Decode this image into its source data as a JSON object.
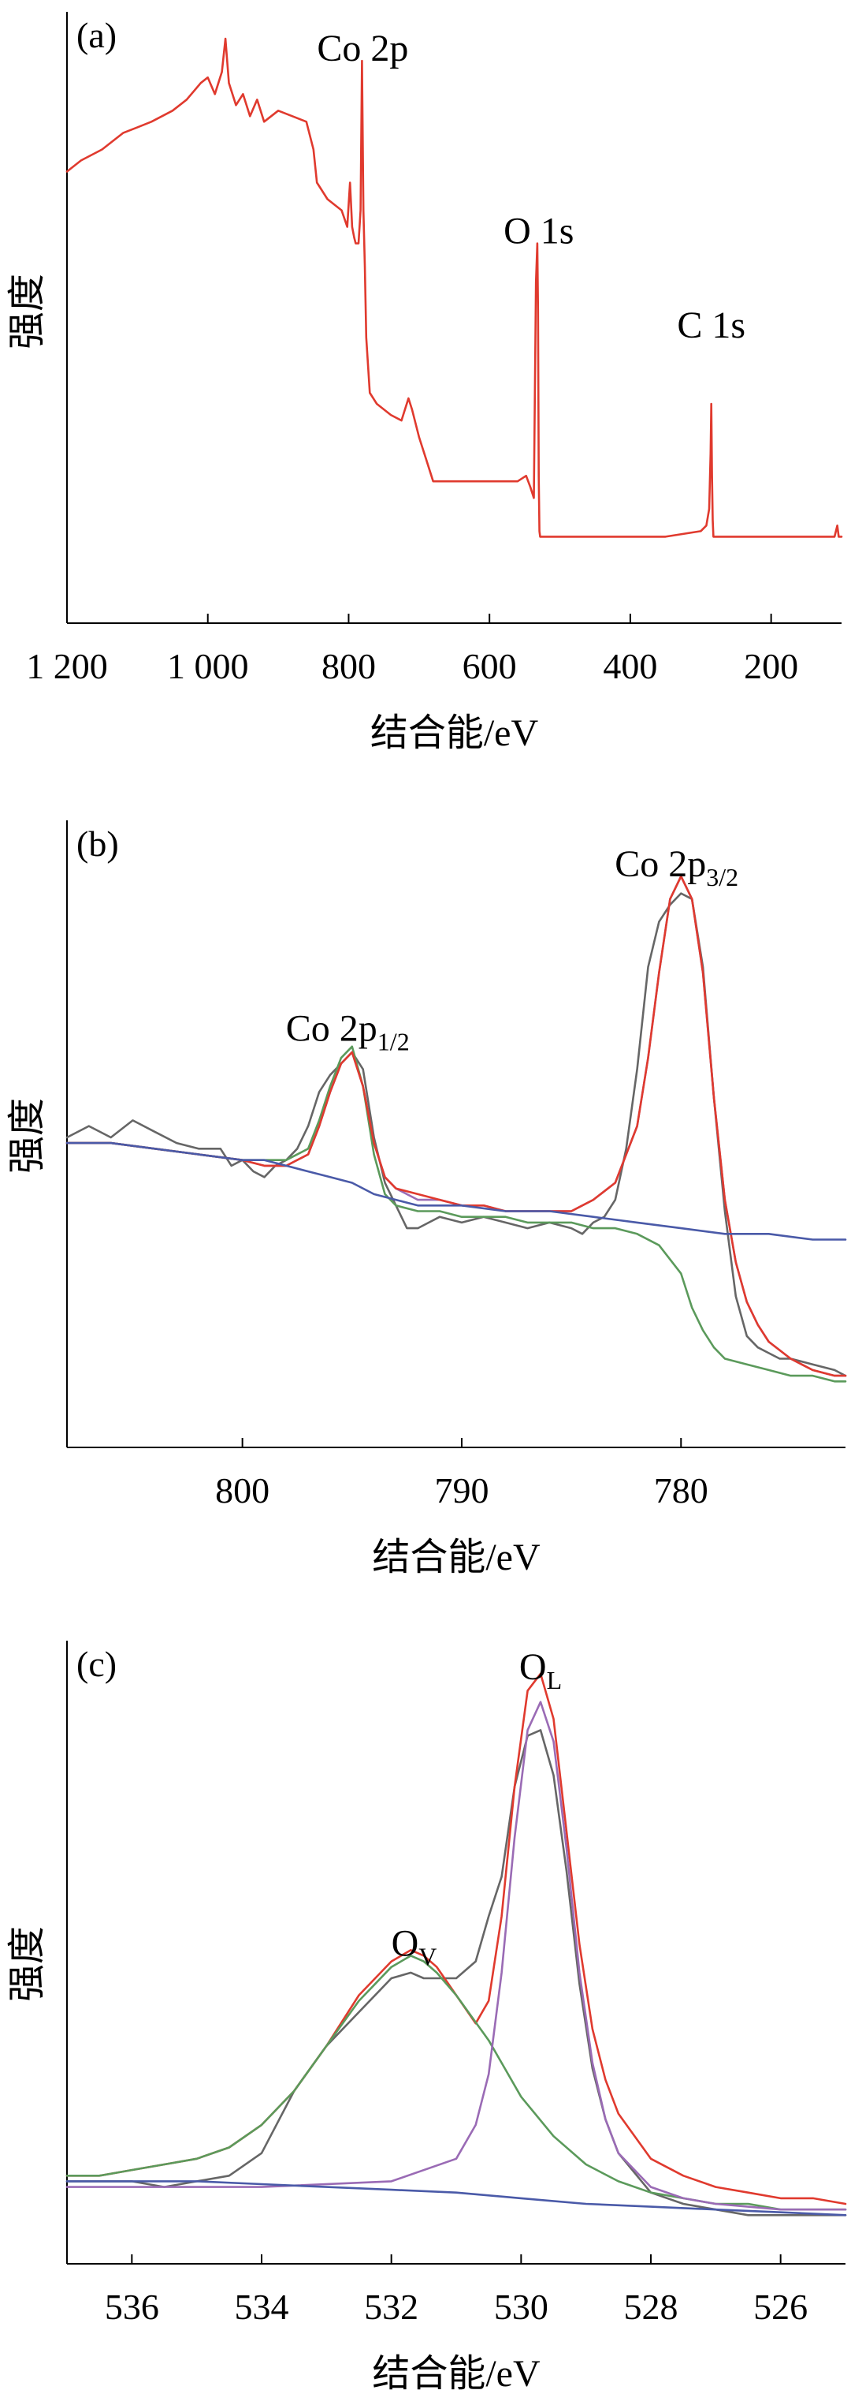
{
  "chart_data": [
    {
      "panel_label": "(a)",
      "type": "line",
      "xlabel": "结合能/eV",
      "ylabel": "强度",
      "xlim": [
        1200,
        100
      ],
      "ylim": [
        0,
        1
      ],
      "xticks": [
        {
          "value": 1200,
          "label": "1 200"
        },
        {
          "value": 1000,
          "label": "1 000"
        },
        {
          "value": 800,
          "label": "800"
        },
        {
          "value": 600,
          "label": "600"
        },
        {
          "value": 400,
          "label": "400"
        },
        {
          "value": 200,
          "label": "200"
        }
      ],
      "annotations": [
        {
          "text": "Co 2p",
          "x": 780,
          "y": 0.95
        },
        {
          "text": "O 1s",
          "x": 530,
          "y": 0.62
        },
        {
          "text": "C 1s",
          "x": 285,
          "y": 0.45
        }
      ],
      "series": [
        {
          "color": "#e03a2e",
          "x": [
            1200,
            1180,
            1150,
            1120,
            1100,
            1080,
            1050,
            1030,
            1010,
            1000,
            990,
            980,
            975,
            970,
            960,
            950,
            940,
            930,
            920,
            900,
            880,
            860,
            850,
            845,
            840,
            830,
            820,
            810,
            802,
            798,
            795,
            792,
            790,
            786,
            783,
            781,
            779,
            777,
            775,
            770,
            760,
            740,
            725,
            715,
            710,
            700,
            690,
            680,
            660,
            640,
            620,
            600,
            580,
            560,
            548,
            542,
            537,
            534,
            532,
            531,
            530,
            529,
            528,
            526,
            522,
            500,
            450,
            400,
            350,
            300,
            292,
            288,
            286,
            285,
            284,
            283,
            282,
            280,
            270,
            250,
            200,
            150,
            120,
            110,
            106,
            104,
            100
          ],
          "values": [
            0.75,
            0.77,
            0.79,
            0.82,
            0.83,
            0.84,
            0.86,
            0.88,
            0.91,
            0.92,
            0.89,
            0.93,
            0.99,
            0.91,
            0.87,
            0.89,
            0.85,
            0.88,
            0.84,
            0.86,
            0.85,
            0.84,
            0.79,
            0.73,
            0.72,
            0.7,
            0.69,
            0.68,
            0.65,
            0.73,
            0.65,
            0.63,
            0.62,
            0.62,
            0.68,
            0.95,
            0.68,
            0.58,
            0.45,
            0.35,
            0.33,
            0.31,
            0.3,
            0.34,
            0.32,
            0.27,
            0.23,
            0.19,
            0.19,
            0.19,
            0.19,
            0.19,
            0.19,
            0.19,
            0.2,
            0.18,
            0.16,
            0.55,
            0.62,
            0.5,
            0.2,
            0.1,
            0.09,
            0.09,
            0.09,
            0.09,
            0.09,
            0.09,
            0.09,
            0.1,
            0.11,
            0.14,
            0.24,
            0.33,
            0.2,
            0.12,
            0.09,
            0.09,
            0.09,
            0.09,
            0.09,
            0.09,
            0.09,
            0.09,
            0.11,
            0.09,
            0.09
          ]
        }
      ]
    },
    {
      "panel_label": "(b)",
      "type": "line",
      "xlabel": "结合能/eV",
      "ylabel": "强度",
      "xlim": [
        808,
        772.5
      ],
      "ylim": [
        0,
        1
      ],
      "xticks": [
        {
          "value": 800,
          "label": "800"
        },
        {
          "value": 790,
          "label": "790"
        },
        {
          "value": 780,
          "label": "780"
        }
      ],
      "annotations": [
        {
          "text": "Co 2p",
          "sub": "1/2",
          "x": 795.2,
          "y": 0.65
        },
        {
          "text": "Co 2p",
          "sub": "3/2",
          "x": 780.2,
          "y": 0.94
        }
      ],
      "series": [
        {
          "color": "#666666",
          "x": [
            808,
            807,
            806,
            805,
            804,
            803,
            802,
            801,
            800.5,
            800,
            799.5,
            799,
            798.5,
            798,
            797.5,
            797,
            796.5,
            796,
            795.5,
            795,
            794.5,
            794,
            793.5,
            793,
            792.5,
            792,
            791.5,
            791,
            790,
            789,
            788,
            787,
            786,
            785,
            784.5,
            784,
            783.5,
            783,
            782.5,
            782,
            781.5,
            781,
            780.5,
            780,
            779.5,
            779,
            778.5,
            778,
            777.5,
            777,
            776.5,
            776,
            775.5,
            775,
            774,
            773,
            772.5
          ],
          "values": [
            0.48,
            0.5,
            0.48,
            0.51,
            0.49,
            0.47,
            0.46,
            0.46,
            0.43,
            0.44,
            0.42,
            0.41,
            0.43,
            0.44,
            0.46,
            0.5,
            0.56,
            0.59,
            0.61,
            0.63,
            0.6,
            0.48,
            0.4,
            0.36,
            0.32,
            0.32,
            0.33,
            0.34,
            0.33,
            0.34,
            0.33,
            0.32,
            0.33,
            0.32,
            0.31,
            0.33,
            0.34,
            0.37,
            0.46,
            0.6,
            0.78,
            0.86,
            0.89,
            0.91,
            0.9,
            0.78,
            0.55,
            0.35,
            0.2,
            0.13,
            0.11,
            0.1,
            0.09,
            0.09,
            0.08,
            0.07,
            0.06
          ]
        },
        {
          "color": "#9a6bb5",
          "x": [
            808,
            806,
            804,
            802,
            800,
            799,
            798,
            797,
            796.5,
            796,
            795.5,
            795,
            794.5,
            794,
            793.5,
            793,
            792,
            791,
            790,
            789,
            788,
            787,
            786,
            785,
            784,
            783,
            782,
            781.5,
            781,
            780.5,
            780,
            779.5,
            779,
            778.5,
            778,
            777.5,
            777,
            776.5,
            776,
            775,
            774,
            773,
            772.5
          ],
          "values": [
            0.47,
            0.47,
            0.46,
            0.45,
            0.44,
            0.43,
            0.43,
            0.45,
            0.5,
            0.56,
            0.61,
            0.63,
            0.57,
            0.47,
            0.41,
            0.39,
            0.37,
            0.37,
            0.36,
            0.36,
            0.35,
            0.35,
            0.35,
            0.35,
            0.37,
            0.4,
            0.5,
            0.62,
            0.77,
            0.9,
            0.94,
            0.9,
            0.77,
            0.55,
            0.37,
            0.26,
            0.19,
            0.15,
            0.12,
            0.09,
            0.07,
            0.06,
            0.06
          ]
        },
        {
          "color": "#5b9a5b",
          "x": [
            808,
            806,
            804,
            802,
            800,
            798,
            797,
            796.5,
            796,
            795.5,
            795,
            794.5,
            794,
            793.5,
            793,
            792,
            791,
            790,
            789,
            788,
            787,
            786,
            785,
            784,
            783,
            782,
            781,
            780,
            779.5,
            779,
            778.5,
            778,
            777,
            776,
            775,
            774,
            773,
            772.5
          ],
          "values": [
            0.47,
            0.47,
            0.46,
            0.45,
            0.44,
            0.44,
            0.46,
            0.51,
            0.57,
            0.62,
            0.64,
            0.57,
            0.45,
            0.38,
            0.36,
            0.35,
            0.35,
            0.34,
            0.34,
            0.34,
            0.33,
            0.33,
            0.33,
            0.32,
            0.32,
            0.31,
            0.29,
            0.24,
            0.18,
            0.14,
            0.11,
            0.09,
            0.08,
            0.07,
            0.06,
            0.06,
            0.05,
            0.05
          ]
        },
        {
          "color": "#e03a2e",
          "x": [
            808,
            806,
            804,
            802,
            800,
            799,
            798,
            797,
            796.5,
            796,
            795.5,
            795,
            794.5,
            794,
            793.5,
            793,
            792,
            791,
            790,
            789,
            788,
            787,
            786,
            785,
            784,
            783,
            782,
            781.5,
            781,
            780.5,
            780,
            779.5,
            779,
            778.5,
            778,
            777.5,
            777,
            776.5,
            776,
            775,
            774,
            773,
            772.5
          ],
          "values": [
            0.47,
            0.47,
            0.46,
            0.45,
            0.44,
            0.43,
            0.43,
            0.45,
            0.5,
            0.56,
            0.61,
            0.63,
            0.57,
            0.47,
            0.41,
            0.39,
            0.38,
            0.37,
            0.36,
            0.36,
            0.35,
            0.35,
            0.35,
            0.35,
            0.37,
            0.4,
            0.5,
            0.62,
            0.77,
            0.9,
            0.94,
            0.9,
            0.77,
            0.55,
            0.37,
            0.26,
            0.19,
            0.15,
            0.12,
            0.09,
            0.07,
            0.06,
            0.06
          ]
        },
        {
          "color": "#4a5aa8",
          "x": [
            808,
            806,
            804,
            802,
            800,
            799,
            798,
            797,
            796,
            795,
            794,
            793,
            792,
            790,
            788,
            786,
            784,
            782,
            780,
            778,
            776,
            774,
            772.5
          ],
          "values": [
            0.47,
            0.47,
            0.46,
            0.45,
            0.44,
            0.44,
            0.43,
            0.42,
            0.41,
            0.4,
            0.38,
            0.37,
            0.36,
            0.36,
            0.35,
            0.35,
            0.34,
            0.33,
            0.32,
            0.31,
            0.31,
            0.3,
            0.3
          ]
        }
      ]
    },
    {
      "panel_label": "(c)",
      "type": "line",
      "xlabel": "结合能/eV",
      "ylabel": "强度",
      "xlim": [
        537,
        525
      ],
      "ylim": [
        0,
        1
      ],
      "xticks": [
        {
          "value": 536,
          "label": "536"
        },
        {
          "value": 534,
          "label": "534"
        },
        {
          "value": 532,
          "label": "532"
        },
        {
          "value": 530,
          "label": "530"
        },
        {
          "value": 528,
          "label": "528"
        },
        {
          "value": 526,
          "label": "526"
        }
      ],
      "annotations": [
        {
          "text": "O",
          "sub": "V",
          "x": 531.65,
          "y": 0.48
        },
        {
          "text": "O",
          "sub": "L",
          "x": 529.7,
          "y": 0.97
        }
      ],
      "series": [
        {
          "color": "#666666",
          "x": [
            537,
            536.5,
            536,
            535.5,
            535,
            534.5,
            534,
            533.5,
            533,
            532.5,
            532,
            531.7,
            531.5,
            531.3,
            531,
            530.7,
            530.5,
            530.3,
            530.1,
            529.9,
            529.7,
            529.5,
            529.3,
            529.1,
            528.9,
            528.7,
            528.5,
            528,
            527.5,
            527,
            526.5,
            526,
            525.5,
            525
          ],
          "values": [
            0.08,
            0.08,
            0.08,
            0.07,
            0.08,
            0.09,
            0.13,
            0.24,
            0.32,
            0.38,
            0.44,
            0.45,
            0.44,
            0.44,
            0.44,
            0.47,
            0.55,
            0.62,
            0.78,
            0.87,
            0.88,
            0.8,
            0.63,
            0.43,
            0.28,
            0.19,
            0.13,
            0.06,
            0.04,
            0.03,
            0.02,
            0.02,
            0.02,
            0.02
          ]
        },
        {
          "color": "#e03a2e",
          "x": [
            537,
            536.5,
            536,
            535.5,
            535,
            534.5,
            534,
            533.5,
            533,
            532.5,
            532,
            531.7,
            531.5,
            531.3,
            531,
            530.7,
            530.5,
            530.3,
            530.1,
            529.9,
            529.7,
            529.5,
            529.3,
            529.1,
            528.9,
            528.7,
            528.5,
            528,
            527.5,
            527,
            526.5,
            526,
            525.5,
            525
          ],
          "values": [
            0.09,
            0.09,
            0.1,
            0.11,
            0.12,
            0.14,
            0.18,
            0.24,
            0.32,
            0.41,
            0.47,
            0.49,
            0.48,
            0.46,
            0.41,
            0.36,
            0.4,
            0.55,
            0.78,
            0.95,
            0.98,
            0.9,
            0.7,
            0.5,
            0.35,
            0.26,
            0.2,
            0.12,
            0.09,
            0.07,
            0.06,
            0.05,
            0.05,
            0.04
          ]
        },
        {
          "color": "#5b9a5b",
          "x": [
            537,
            536.5,
            536,
            535.5,
            535,
            534.5,
            534,
            533.5,
            533,
            532.5,
            532,
            531.7,
            531.5,
            531.3,
            531,
            530.5,
            530,
            529.5,
            529,
            528.5,
            528,
            527.5,
            527,
            526.5,
            526,
            525.5,
            525
          ],
          "values": [
            0.09,
            0.09,
            0.1,
            0.11,
            0.12,
            0.14,
            0.18,
            0.24,
            0.32,
            0.4,
            0.46,
            0.48,
            0.47,
            0.45,
            0.41,
            0.33,
            0.23,
            0.16,
            0.11,
            0.08,
            0.06,
            0.05,
            0.04,
            0.04,
            0.03,
            0.03,
            0.03
          ]
        },
        {
          "color": "#9a6bb5",
          "x": [
            537,
            534,
            532,
            531,
            530.7,
            530.5,
            530.3,
            530.1,
            529.9,
            529.7,
            529.5,
            529.3,
            529.1,
            528.9,
            528.7,
            528.5,
            528,
            527.5,
            527,
            526,
            525
          ],
          "values": [
            0.07,
            0.07,
            0.08,
            0.12,
            0.18,
            0.27,
            0.45,
            0.69,
            0.88,
            0.93,
            0.86,
            0.67,
            0.45,
            0.29,
            0.19,
            0.13,
            0.07,
            0.05,
            0.04,
            0.03,
            0.03
          ]
        },
        {
          "color": "#4a5aa8",
          "x": [
            537,
            536,
            535,
            534,
            533,
            532,
            531,
            530,
            529,
            528,
            527,
            526,
            525
          ],
          "values": [
            0.08,
            0.08,
            0.08,
            0.075,
            0.07,
            0.065,
            0.06,
            0.05,
            0.04,
            0.035,
            0.03,
            0.025,
            0.02
          ]
        }
      ]
    }
  ]
}
